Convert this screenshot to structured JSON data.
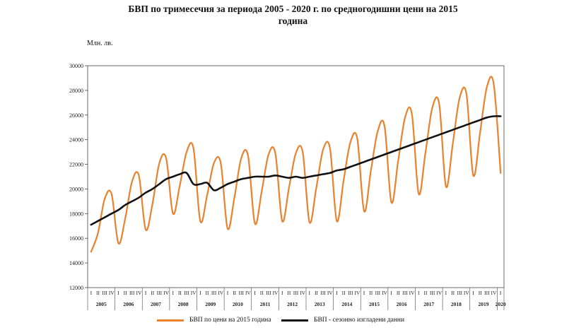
{
  "chart_data": {
    "type": "line",
    "title_line1": "БВП по тримесечия за периода 2005 - 2020 г. по средногодишни цени на 2015",
    "title_line2": "година",
    "unit_label": "Млн. лв.",
    "ylim": [
      12000,
      30000
    ],
    "y_ticks": [
      "12000",
      "14000",
      "16000",
      "18000",
      "20000",
      "22000",
      "24000",
      "26000",
      "28000",
      "30000"
    ],
    "quarter_labels": [
      "I",
      "II",
      "III",
      "IV"
    ],
    "years": [
      "2005",
      "2006",
      "2007",
      "2008",
      "2009",
      "2010",
      "2011",
      "2012",
      "2013",
      "2014",
      "2015",
      "2016",
      "2017",
      "2018",
      "2019",
      "2020"
    ],
    "grid": false,
    "legend_position": "bottom",
    "series": [
      {
        "name": "БВП по цени на 2015 година",
        "color": "#e8822e",
        "values": [
          14900,
          16400,
          19200,
          19600,
          15600,
          17600,
          20600,
          21100,
          16700,
          18800,
          22100,
          22500,
          18000,
          20300,
          23000,
          23300,
          17400,
          19500,
          22100,
          22100,
          16800,
          19300,
          22500,
          22700,
          17200,
          19800,
          22800,
          22900,
          17400,
          20100,
          22900,
          23000,
          17300,
          20100,
          23200,
          23300,
          17400,
          20700,
          23800,
          24100,
          18200,
          21500,
          24700,
          25100,
          18900,
          22300,
          25800,
          26100,
          19600,
          23000,
          26600,
          26900,
          20200,
          23700,
          27400,
          27700,
          21100,
          24600,
          28300,
          28500,
          21300
        ]
      },
      {
        "name": "БВП - сезонно изгладени данни",
        "color": "#111111",
        "values": [
          17100,
          17400,
          17700,
          18000,
          18300,
          18700,
          19000,
          19300,
          19700,
          20000,
          20400,
          20800,
          21000,
          21200,
          21300,
          20400,
          20400,
          20500,
          19900,
          20100,
          20400,
          20600,
          20800,
          20900,
          21000,
          21000,
          21000,
          21100,
          21000,
          20900,
          21000,
          20900,
          21000,
          21100,
          21200,
          21300,
          21500,
          21600,
          21800,
          22000,
          22200,
          22400,
          22600,
          22800,
          23000,
          23200,
          23400,
          23600,
          23800,
          24000,
          24200,
          24400,
          24600,
          24800,
          25000,
          25200,
          25400,
          25600,
          25800,
          25900,
          25900
        ]
      }
    ]
  }
}
